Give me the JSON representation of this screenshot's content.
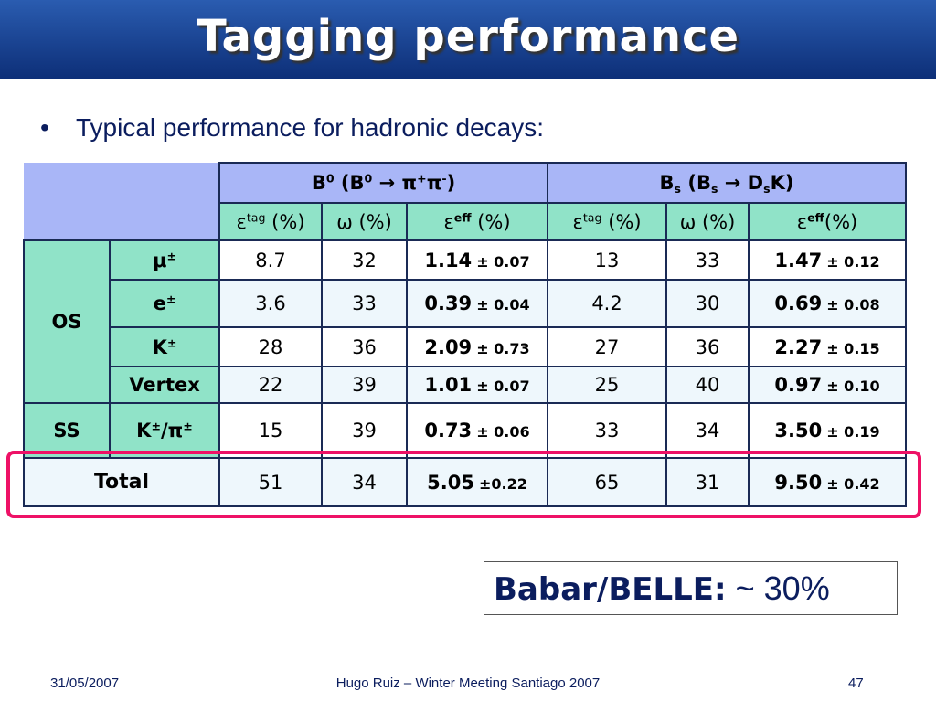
{
  "header": {
    "title": "Tagging performance"
  },
  "bullet": "Typical performance for hadronic decays:",
  "table": {
    "groups": [
      [
        "B",
        {
          "sup": "0"
        },
        " (B",
        {
          "sup": "0"
        },
        " → π",
        {
          "sup": "+"
        },
        "π",
        {
          "sup": "-"
        },
        ")"
      ],
      [
        "B",
        {
          "sub": "s"
        },
        " (B",
        {
          "sub": "s"
        },
        " → D",
        {
          "sub": "s"
        },
        "K)"
      ]
    ],
    "columns": [
      [
        "ε",
        {
          "sup": "tag"
        },
        " (%)"
      ],
      "ω (%)",
      [
        "ε",
        {
          "sup": "eff"
        },
        " (%)"
      ],
      [
        "ε",
        {
          "sup": "tag"
        },
        " (%)"
      ],
      "ω (%)",
      [
        "ε",
        {
          "sup": "eff"
        },
        "(%)"
      ]
    ],
    "rows": [
      {
        "group": "OS",
        "tag": [
          "μ",
          {
            "sup": "±"
          }
        ],
        "cells": [
          "8.7",
          "32",
          {
            "value": "1.14",
            "error": "± 0.07"
          },
          "13",
          "33",
          {
            "value": "1.47",
            "error": "± 0.12"
          }
        ]
      },
      {
        "tag": [
          "e",
          {
            "sup": "±"
          }
        ],
        "cells": [
          "3.6",
          "33",
          {
            "value": "0.39",
            "error": "± 0.04"
          },
          "4.2",
          "30",
          {
            "value": "0.69",
            "error": "± 0.08"
          }
        ]
      },
      {
        "tag": [
          "K",
          {
            "sup": "±"
          }
        ],
        "cells": [
          "28",
          "36",
          {
            "value": "2.09",
            "error": "± 0.73"
          },
          "27",
          "36",
          {
            "value": "2.27",
            "error": "± 0.15"
          }
        ]
      },
      {
        "tag": "Vertex",
        "cells": [
          "22",
          "39",
          {
            "value": "1.01",
            "error": "± 0.07"
          },
          "25",
          "40",
          {
            "value": "0.97",
            "error": "± 0.10"
          }
        ]
      },
      {
        "group": "SS",
        "tag": [
          "K",
          {
            "sup": "±"
          },
          "/π",
          {
            "sup": "±"
          }
        ],
        "cells": [
          "15",
          "39",
          {
            "value": "0.73",
            "error": "± 0.06"
          },
          "33",
          "34",
          {
            "value": "3.50",
            "error": "± 0.19"
          }
        ]
      }
    ],
    "total": {
      "label": "Total",
      "cells": [
        "51",
        "34",
        {
          "value": "5.05",
          "error": "±0.22"
        },
        "65",
        "31",
        {
          "value": "9.50",
          "error": "± 0.42"
        }
      ]
    }
  },
  "note": {
    "label": "Babar/BELLE:",
    "value": "~ 30%"
  },
  "footer": {
    "date": "31/05/2007",
    "center": "Hugo Ruiz – Winter Meeting Santiago 2007",
    "page": "47"
  }
}
